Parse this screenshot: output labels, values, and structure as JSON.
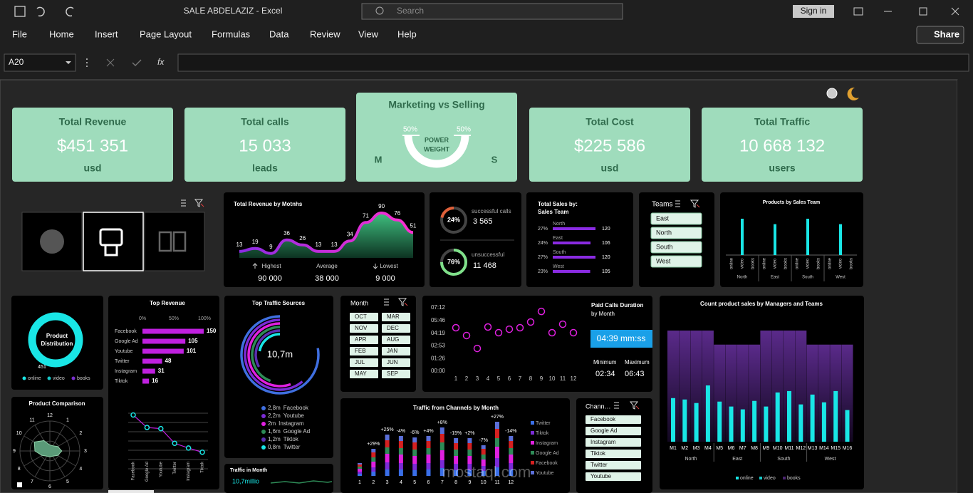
{
  "window": {
    "title": "SALE ABDELAZIZ  -  Excel",
    "search": "Search",
    "sign_in": "Sign in",
    "share": "Share"
  },
  "menu": [
    "File",
    "Home",
    "Insert",
    "Page Layout",
    "Formulas",
    "Data",
    "Review",
    "View",
    "Help"
  ],
  "formula_bar": {
    "cell": "A20",
    "fx": "fx"
  },
  "kpis": [
    {
      "title": "Total Revenue",
      "value": "$451 351",
      "unit": "usd"
    },
    {
      "title": "Total calls",
      "value": "15 033",
      "unit": "leads"
    },
    {
      "title": "Total Cost",
      "value": "$225 586",
      "unit": "usd"
    },
    {
      "title": "Total Traffic",
      "value": "10 668 132",
      "unit": "users"
    }
  ],
  "marketing": {
    "title": "Marketing vs Selling",
    "left_pct": "50%",
    "right_pct": "50%",
    "center_top": "POWER",
    "center_bottom": "WEIGHT",
    "left": "M",
    "right": "S"
  },
  "revenue_months": {
    "title": "Total Revenue by Motnhs",
    "values": [
      13,
      19,
      9,
      36,
      26,
      13,
      13,
      34,
      71,
      90,
      76,
      51
    ],
    "ylim": [
      0,
      100
    ],
    "highest_label": "Highest",
    "highest": "90 000",
    "average_label": "Average",
    "average": "38 000",
    "lowest_label": "Lowest",
    "lowest": "9 000"
  },
  "calls": {
    "successful_pct": "24%",
    "successful_label": "successful calls",
    "successful": "3 565",
    "unsuccessful_pct": "76%",
    "unsuccessful_label": "unsuccessful",
    "unsuccessful": "11 468"
  },
  "sales_team": {
    "title_top": "Total Sales by:",
    "title_bottom": "Sales Team",
    "rows": [
      {
        "name": "North",
        "pct": "27%",
        "value": 120
      },
      {
        "name": "East",
        "pct": "24%",
        "value": 106
      },
      {
        "name": "South",
        "pct": "27%",
        "value": 120
      },
      {
        "name": "West",
        "pct": "23%",
        "value": 105
      }
    ]
  },
  "teams_slicer": {
    "title": "Teams",
    "items": [
      "East",
      "North",
      "South",
      "West"
    ]
  },
  "products_by_team": {
    "title": "Products by Sales Team",
    "groups": [
      "North",
      "East",
      "South",
      "West"
    ],
    "subcategories": [
      "online",
      "video",
      "books"
    ],
    "ylim": [
      0,
      100
    ],
    "series": [
      {
        "name": "online",
        "values": [
          0,
          0,
          0,
          0
        ]
      },
      {
        "name": "video",
        "values": [
          100,
          85,
          100,
          85
        ]
      },
      {
        "name": "books",
        "values": [
          0,
          0,
          0,
          0
        ]
      }
    ],
    "color": "#19e6e6"
  },
  "product_distribution": {
    "title_top": "Product",
    "title_bottom": "Distribution",
    "total": 451,
    "legend": [
      {
        "name": "online",
        "color": "#19e6e6"
      },
      {
        "name": "video",
        "color": "#17c9c9"
      },
      {
        "name": "books",
        "color": "#7a2fd0"
      }
    ]
  },
  "product_comparison": {
    "title": "Product Comparison",
    "spokes": [
      12,
      1,
      2,
      3,
      4,
      5,
      6,
      7,
      8,
      9,
      10,
      11
    ],
    "values": [
      2,
      2,
      3,
      4,
      3,
      2,
      2,
      2,
      3,
      5,
      6,
      4
    ],
    "rmax": 10
  },
  "top_revenue": {
    "title": "Top Revenue",
    "axis": [
      "0%",
      "50%",
      "100%"
    ],
    "xmax": 150,
    "rows": [
      {
        "name": "Facebook",
        "value": 150
      },
      {
        "name": "Google Ad",
        "value": 105
      },
      {
        "name": "Youtube",
        "value": 101
      },
      {
        "name": "Twitter",
        "value": 48
      },
      {
        "name": "Instagram",
        "value": 31
      },
      {
        "name": "Tiktok",
        "value": 16
      }
    ]
  },
  "traffic_sources": {
    "title": "Top Traffic Sources",
    "total": "10,7m",
    "items": [
      {
        "value": 2.8,
        "label": "2,8m",
        "name": "Facebook",
        "color": "#3f6fe0"
      },
      {
        "value": 2.2,
        "label": "2,2m",
        "name": "Youtube",
        "color": "#7b2bd6"
      },
      {
        "value": 2,
        "label": "2m",
        "name": "Instagram",
        "color": "#e020e0"
      },
      {
        "value": 1.6,
        "label": "1,6m",
        "name": "Google Ad",
        "color": "#2e8b57"
      },
      {
        "value": 1.2,
        "label": "1,2m",
        "name": "Tiktok",
        "color": "#5a2fb0"
      },
      {
        "value": 0.8,
        "label": "0,8m",
        "name": "Twitter",
        "color": "#19e6e6"
      }
    ]
  },
  "traffic_month": {
    "title": "Traffic in Month",
    "value": "10,7millio"
  },
  "month_slicer": {
    "title": "Month",
    "items": [
      "OCT",
      "MAR",
      "NOV",
      "DEC",
      "APR",
      "AUG",
      "FEB",
      "JAN",
      "JUL",
      "JUN",
      "MAY",
      "SEP"
    ]
  },
  "paid_calls": {
    "title": "Paid Calls Duration",
    "subtitle": "by Month",
    "x": [
      1,
      2,
      3,
      4,
      5,
      6,
      7,
      8,
      9,
      10,
      11,
      12
    ],
    "values": [
      296,
      243,
      155,
      301,
      262,
      286,
      296,
      335,
      407,
      262,
      320,
      262
    ],
    "ylim": [
      0,
      432
    ],
    "yticks": [
      {
        "value": 432,
        "label": "07:12"
      },
      {
        "value": 346,
        "label": "05:46"
      },
      {
        "value": 259,
        "label": "04:19"
      },
      {
        "value": 173,
        "label": "02:53"
      },
      {
        "value": 86,
        "label": "01:26"
      },
      {
        "value": 0,
        "label": "00:00"
      }
    ],
    "average": "04:39 mm:ss",
    "min_label": "Minimum",
    "min": "02:34",
    "max_label": "Maximum",
    "max": "06:43"
  },
  "traffic_channels": {
    "title": "Traffic from Channels by Month",
    "x": [
      1,
      2,
      3,
      4,
      5,
      6,
      7,
      8,
      9,
      10,
      11,
      12
    ],
    "ylim": [
      0,
      80
    ],
    "change_labels": [
      null,
      "+29%",
      "+25%",
      "-4%",
      "-6%",
      "+4%",
      "+8%",
      "-15%",
      "+2%",
      "-7%",
      "+27%",
      "-14%"
    ],
    "series": [
      {
        "name": "Twitter",
        "color": "#3a6fe8",
        "values": [
          3,
          6,
          9,
          9,
          8,
          9,
          11,
          8,
          8,
          7,
          12,
          9
        ]
      },
      {
        "name": "Tiktok",
        "color": "#7b2bd6",
        "values": [
          3,
          6,
          10,
          9,
          9,
          9,
          11,
          9,
          9,
          7,
          13,
          9
        ]
      },
      {
        "name": "Instagram",
        "color": "#e020e0",
        "values": [
          4,
          8,
          12,
          12,
          11,
          12,
          14,
          11,
          11,
          9,
          16,
          12
        ]
      },
      {
        "name": "Google Ad",
        "color": "#2e8b57",
        "values": [
          3,
          6,
          9,
          9,
          9,
          9,
          11,
          9,
          9,
          7,
          12,
          9
        ]
      },
      {
        "name": "Facebook",
        "color": "#d42020",
        "values": [
          3,
          7,
          10,
          10,
          10,
          10,
          12,
          9,
          9,
          8,
          13,
          10
        ]
      },
      {
        "name": "Youtube",
        "color": "#5b6fd8",
        "values": [
          2,
          5,
          8,
          7,
          7,
          7,
          9,
          7,
          7,
          5,
          10,
          7
        ]
      }
    ]
  },
  "channels_slicer": {
    "title": "Chann…",
    "items": [
      "Facebook",
      "Google Ad",
      "Instagram",
      "Tiktok",
      "Twitter",
      "Youtube"
    ]
  },
  "count_product": {
    "title": "Count product sales by Managers and Teams",
    "categories": [
      "M1",
      "M2",
      "M3",
      "M4",
      "M5",
      "M6",
      "M7",
      "M8",
      "M9",
      "M10",
      "M11",
      "M12",
      "M13",
      "M14",
      "M15",
      "M16"
    ],
    "groups": [
      "North",
      "East",
      "South",
      "West"
    ],
    "ylim": [
      0,
      160
    ],
    "series": [
      {
        "name": "online",
        "color": "#19e6e6",
        "values": [
          62,
          60,
          55,
          80,
          57,
          50,
          46,
          58,
          50,
          70,
          72,
          53,
          67,
          56,
          72,
          45
        ]
      },
      {
        "name": "video",
        "color": "#17c9c9"
      },
      {
        "name": "books",
        "color": "#4a2470",
        "values": [
          158,
          158,
          158,
          158,
          138,
          138,
          138,
          138,
          158,
          158,
          158,
          158,
          138,
          138,
          138,
          138
        ]
      }
    ]
  },
  "watermark": "mostaql.com"
}
